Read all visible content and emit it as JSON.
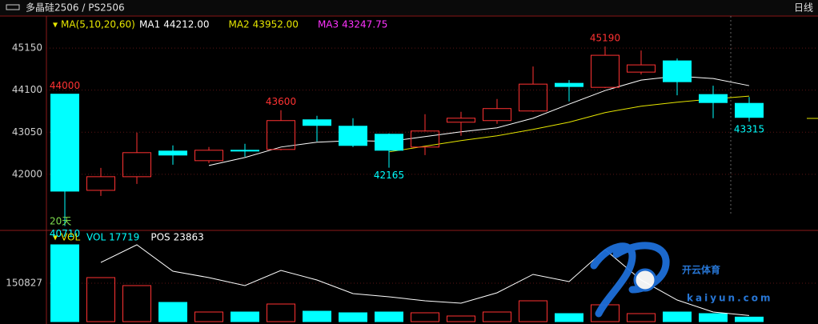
{
  "header": {
    "title": "多晶硅2506 / PS2506",
    "period": "日线"
  },
  "watermark": {
    "brand": "开云体育",
    "url": "kaiyun.com"
  },
  "chart_data": [
    {
      "type": "candlestick",
      "legend_title": "MA(5,10,20,60)",
      "note": "20天",
      "up_color": "#ff3232",
      "down_color": "#00ffff",
      "ylim": [
        40600,
        45950
      ],
      "yticks": [
        42000,
        43050,
        44100,
        45150
      ],
      "grid": true,
      "candles": [
        {
          "open": 44000,
          "high": 44000,
          "low": 40710,
          "close": 41580,
          "marked": [
            "high",
            "low"
          ]
        },
        {
          "open": 41600,
          "high": 42160,
          "low": 41460,
          "close": 41940
        },
        {
          "open": 41940,
          "high": 43040,
          "low": 41760,
          "close": 42540
        },
        {
          "open": 42580,
          "high": 42720,
          "low": 42240,
          "close": 42480
        },
        {
          "open": 42340,
          "high": 42680,
          "low": 42280,
          "close": 42600
        },
        {
          "open": 42600,
          "high": 42760,
          "low": 42440,
          "close": 42580
        },
        {
          "open": 42620,
          "high": 43600,
          "low": 42600,
          "close": 43340,
          "marked": [
            "high"
          ]
        },
        {
          "open": 43360,
          "high": 43460,
          "low": 42820,
          "close": 43220
        },
        {
          "open": 43200,
          "high": 43400,
          "low": 42680,
          "close": 42720
        },
        {
          "open": 43000,
          "high": 43020,
          "low": 42165,
          "close": 42600,
          "marked": [
            "low"
          ]
        },
        {
          "open": 42680,
          "high": 43500,
          "low": 42480,
          "close": 43080
        },
        {
          "open": 43300,
          "high": 43560,
          "low": 42960,
          "close": 43400
        },
        {
          "open": 43340,
          "high": 43880,
          "low": 43260,
          "close": 43640
        },
        {
          "open": 43580,
          "high": 44690,
          "low": 43560,
          "close": 44250
        },
        {
          "open": 44270,
          "high": 44350,
          "low": 43820,
          "close": 44190
        },
        {
          "open": 44170,
          "high": 45190,
          "low": 44150,
          "close": 44970,
          "marked": [
            "high"
          ]
        },
        {
          "open": 44550,
          "high": 45090,
          "low": 44490,
          "close": 44730
        },
        {
          "open": 44830,
          "high": 44890,
          "low": 43970,
          "close": 44310
        },
        {
          "open": 43990,
          "high": 44210,
          "low": 43400,
          "close": 43790
        },
        {
          "open": 43770,
          "high": 43930,
          "low": 43315,
          "close": 43420,
          "marked": [
            "low"
          ]
        }
      ],
      "series": [
        {
          "name": "MA1",
          "color": "#ffffff",
          "legend_label": "44212.00",
          "values": [
            null,
            null,
            null,
            null,
            42220,
            42420,
            42680,
            42800,
            42840,
            42820,
            42940,
            43060,
            43160,
            43400,
            43750,
            44090,
            44350,
            44450,
            44390,
            44212
          ]
        },
        {
          "name": "MA2",
          "color": "#e6e600",
          "legend_label": "43952.00",
          "values": [
            null,
            null,
            null,
            null,
            null,
            null,
            null,
            null,
            null,
            42560,
            42700,
            42840,
            42960,
            43120,
            43300,
            43540,
            43700,
            43800,
            43880,
            43952
          ]
        },
        {
          "name": "MA3",
          "color": "#ff33ff",
          "legend_label": "43247.75",
          "values": [
            null,
            null,
            null,
            null,
            null,
            null,
            null,
            null,
            null,
            null,
            null,
            null,
            null,
            null,
            null,
            null,
            null,
            null,
            null,
            null
          ]
        }
      ]
    },
    {
      "type": "volume",
      "legend_title": "VOL",
      "up_color": "#ff3232",
      "down_color": "#00ffff",
      "ylim": [
        0,
        345600
      ],
      "yticks": [
        150827
      ],
      "grid": true,
      "series": [
        {
          "name": "VOL",
          "color": "#00ffff",
          "values": [
            301600,
            172800,
            141400,
            75400,
            37700,
            37700,
            69100,
            40800,
            34600,
            37700,
            34600,
            22000,
            37700,
            81700,
            31400,
            66000,
            31400,
            37700,
            31400,
            17719
          ]
        },
        {
          "name": "POS",
          "color": "#ffffff",
          "values": [
            null,
            232500,
            301600,
            197900,
            172800,
            141400,
            201100,
            163400,
            110000,
            97400,
            81700,
            72300,
            113100,
            185400,
            157100,
            282800,
            163400,
            84800,
            37700,
            23863
          ]
        }
      ]
    }
  ]
}
